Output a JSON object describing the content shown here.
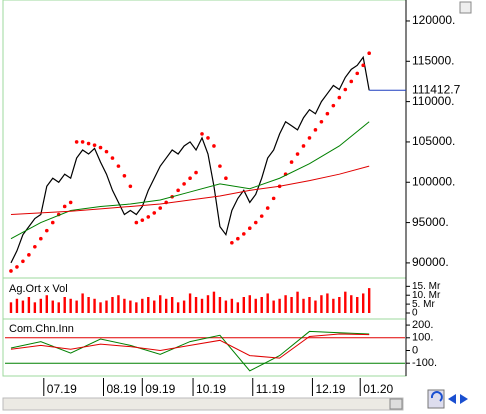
{
  "chart_data": [
    {
      "type": "price",
      "xlim": [
        -1,
        66
      ],
      "ylim": [
        88500,
        122600
      ],
      "yticks": [
        {
          "value": 120000,
          "label": "120000."
        },
        {
          "value": 115000,
          "label": "115000."
        },
        {
          "value": 110000,
          "label": "110000."
        },
        {
          "value": 105000,
          "label": "105000."
        },
        {
          "value": 100000,
          "label": "100000."
        },
        {
          "value": 95000,
          "label": "95000."
        },
        {
          "value": 90000,
          "label": "90000."
        }
      ],
      "xticks": [
        {
          "value": 6,
          "label": "07.19"
        },
        {
          "value": 16,
          "label": "08.19"
        },
        {
          "value": 22.5,
          "label": "09.19"
        },
        {
          "value": 31,
          "label": "10.19"
        },
        {
          "value": 41,
          "label": "11.19"
        },
        {
          "value": 51,
          "label": "12.19"
        },
        {
          "value": 59,
          "label": "01.20"
        }
      ],
      "last": 111412.7,
      "last_color": "#1f3fbf",
      "series": [
        {
          "kind": "line",
          "color": "#000000",
          "values": [
            90000,
            91500,
            93500,
            94500,
            95500,
            96000,
            99500,
            100500,
            100000,
            101000,
            100500,
            103000,
            104000,
            103500,
            104200,
            102500,
            101000,
            99000,
            97500,
            96000,
            96500,
            96000,
            97000,
            99000,
            100500,
            102000,
            103000,
            104000,
            103500,
            104500,
            105000,
            104000,
            105500,
            103500,
            99500,
            94500,
            93500,
            96500,
            98000,
            99000,
            97500,
            98500,
            100500,
            103000,
            104000,
            106000,
            107500,
            107000,
            106500,
            108000,
            109000,
            108500,
            110000,
            111000,
            112000,
            111500,
            113000,
            114000,
            114500,
            115500,
            111412.7
          ]
        },
        {
          "kind": "dots",
          "color": "#ff0000",
          "values": [
            89000,
            89500,
            90200,
            91000,
            92000,
            93000,
            94000,
            95000,
            96000,
            97000,
            97500,
            105000,
            105000,
            104800,
            104600,
            104300,
            103800,
            103000,
            102000,
            100800,
            99500,
            95000,
            95300,
            95700,
            96200,
            96800,
            97500,
            98200,
            99000,
            99800,
            100500,
            101200,
            106000,
            105500,
            104500,
            102000,
            100500,
            92500,
            93000,
            93600,
            94300,
            95000,
            95800,
            96800,
            98000,
            99500,
            101000,
            102500,
            103500,
            104500,
            105500,
            106500,
            107500,
            108500,
            109500,
            110500,
            111500,
            112500,
            113500,
            114500,
            116000
          ]
        },
        {
          "kind": "line",
          "color": "#008000",
          "x": [
            0,
            5,
            10,
            15,
            20,
            25,
            30,
            35,
            40,
            45,
            50,
            55,
            60
          ],
          "values": [
            93000,
            95000,
            96500,
            97000,
            97300,
            97800,
            98800,
            99800,
            99200,
            100500,
            102300,
            104500,
            107500
          ]
        },
        {
          "kind": "line",
          "color": "#e00000",
          "x": [
            0,
            5,
            10,
            15,
            20,
            25,
            30,
            35,
            40,
            45,
            50,
            55,
            60
          ],
          "values": [
            96000,
            96200,
            96400,
            96700,
            97000,
            97300,
            97800,
            98300,
            99000,
            99500,
            100200,
            101000,
            102000
          ]
        }
      ]
    },
    {
      "type": "volume",
      "label": "Ag.Ort x Vol",
      "color": "#ff0000",
      "ylim": [
        0,
        18
      ],
      "yticks": [
        {
          "value": 15,
          "label": "15. Mr"
        },
        {
          "value": 10,
          "label": "10. Mr"
        },
        {
          "value": 5,
          "label": "5. Mr"
        },
        0
      ],
      "values": [
        6,
        8,
        7,
        9,
        6,
        8,
        10,
        7,
        6,
        9,
        8,
        7,
        11,
        9,
        8,
        6,
        7,
        9,
        10,
        8,
        7,
        6,
        8,
        9,
        7,
        10,
        8,
        9,
        6,
        7,
        11,
        9,
        8,
        10,
        12,
        9,
        7,
        8,
        6,
        9,
        10,
        8,
        9,
        11,
        7,
        8,
        10,
        9,
        12,
        8,
        9,
        7,
        10,
        11,
        8,
        9,
        12,
        10,
        9,
        11,
        14
      ]
    },
    {
      "type": "oscillator",
      "label": "Com.Chn.Inn",
      "ylim": [
        -185,
        240
      ],
      "yticks": [
        {
          "value": 200,
          "label": "200."
        },
        {
          "value": 100,
          "label": "100."
        },
        0,
        {
          "value": -100,
          "label": "-100."
        }
      ],
      "levels": [
        {
          "value": 100,
          "color": "#e00000"
        },
        {
          "value": -100,
          "color": "#008000"
        }
      ],
      "series": [
        {
          "color": "#008000",
          "x": [
            0,
            5,
            10,
            15,
            20,
            25,
            30,
            35,
            40,
            45,
            50,
            55,
            60
          ],
          "values": [
            20,
            70,
            -20,
            90,
            40,
            -30,
            70,
            120,
            -160,
            -40,
            150,
            140,
            130
          ]
        },
        {
          "color": "#e00000",
          "x": [
            0,
            5,
            10,
            15,
            20,
            25,
            30,
            35,
            40,
            45,
            50,
            55,
            60
          ],
          "values": [
            10,
            40,
            10,
            50,
            30,
            0,
            40,
            80,
            -40,
            -60,
            110,
            130,
            125
          ]
        }
      ]
    }
  ]
}
